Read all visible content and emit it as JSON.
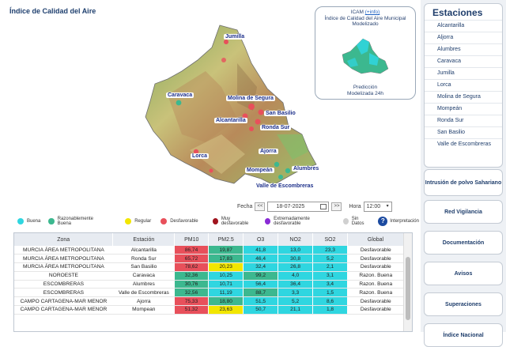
{
  "page_title": "Índice de Calidad del Aire",
  "map_labels": [
    "Jumilla",
    "Caravaca",
    "Molina de Segura",
    "San Basilio",
    "Alcantarilla",
    "Ronda Sur",
    "Ajorra",
    "Lorca",
    "Mompeán",
    "Alumbres",
    "Valle de Escombreras"
  ],
  "inset": {
    "title": "ICAM",
    "link": "(+info)",
    "line1": "Índice de Calidad del Aire Municipal",
    "line2": "Modelizado",
    "foot1": "Predicción",
    "foot2": "Modelizada 24h"
  },
  "date_selector": {
    "fecha_label": "Fecha",
    "prev": "<<",
    "date": "18-07-2025",
    "next": ">>",
    "hora_label": "Hora",
    "hour": "12:00"
  },
  "legend": [
    {
      "label": "Buena",
      "color": "#2fd6e0"
    },
    {
      "label": "Razonablemente Buena",
      "color": "#3cb88f"
    },
    {
      "label": "Regular",
      "color": "#f2e600"
    },
    {
      "label": "Desfavorable",
      "color": "#e8505b"
    },
    {
      "label": "Muy desfavorable",
      "color": "#a0141e"
    },
    {
      "label": "Extremadamente desfavorable",
      "color": "#8a2bd6"
    },
    {
      "label": "Sin Datos",
      "color": "#d0d0d0"
    },
    {
      "label": "Interpretación",
      "color": "#1b4aa0"
    }
  ],
  "table": {
    "headers": [
      "Zona",
      "Estación",
      "PM10",
      "PM2.5",
      "O3",
      "NO2",
      "SO2",
      "Global"
    ],
    "rows": [
      {
        "zona": "MURCIA ÁREA METROPOLITANA",
        "estacion": "Alcantarilla",
        "pm10": "86,74",
        "pm25": "19,87",
        "o3": "41,8",
        "no2": "13,0",
        "so2": "23,3",
        "global": "Desfavorable",
        "c": [
          "#e8505b",
          "#3cb88f",
          "#2fd6e0",
          "#2fd6e0",
          "#2fd6e0"
        ]
      },
      {
        "zona": "MURCIA ÁREA METROPOLITANA",
        "estacion": "Ronda Sur",
        "pm10": "65,72",
        "pm25": "17,83",
        "o3": "46,4",
        "no2": "30,8",
        "so2": "5,2",
        "global": "Desfavorable",
        "c": [
          "#e8505b",
          "#3cb88f",
          "#2fd6e0",
          "#2fd6e0",
          "#2fd6e0"
        ]
      },
      {
        "zona": "MURCIA ÁREA METROPOLITANA",
        "estacion": "San Basilio",
        "pm10": "78,62",
        "pm25": "20,23",
        "o3": "32,4",
        "no2": "26,8",
        "so2": "2,1",
        "global": "Desfavorable",
        "c": [
          "#e8505b",
          "#f2e600",
          "#2fd6e0",
          "#2fd6e0",
          "#2fd6e0"
        ]
      },
      {
        "zona": "NOROESTE",
        "estacion": "Caravaca",
        "pm10": "32,36",
        "pm25": "10,25",
        "o3": "99,2",
        "no2": "4,0",
        "so2": "3,1",
        "global": "Razon. Buena",
        "c": [
          "#3cb88f",
          "#2fd6e0",
          "#3cb88f",
          "#2fd6e0",
          "#2fd6e0"
        ]
      },
      {
        "zona": "ESCOMBRERAS",
        "estacion": "Alumbres",
        "pm10": "30,76",
        "pm25": "10,71",
        "o3": "56,4",
        "no2": "36,4",
        "so2": "3,4",
        "global": "Razon. Buena",
        "c": [
          "#3cb88f",
          "#2fd6e0",
          "#2fd6e0",
          "#2fd6e0",
          "#2fd6e0"
        ]
      },
      {
        "zona": "ESCOMBRERAS",
        "estacion": "Valle de Escombreras",
        "pm10": "32,56",
        "pm25": "11,19",
        "o3": "88,7",
        "no2": "3,3",
        "so2": "1,5",
        "global": "Razon. Buena",
        "c": [
          "#3cb88f",
          "#2fd6e0",
          "#3cb88f",
          "#2fd6e0",
          "#2fd6e0"
        ]
      },
      {
        "zona": "CAMPO CARTAGENA-MAR MENOR",
        "estacion": "Ajorra",
        "pm10": "75,33",
        "pm25": "18,80",
        "o3": "51,5",
        "no2": "5,2",
        "so2": "8,6",
        "global": "Desfavorable",
        "c": [
          "#e8505b",
          "#3cb88f",
          "#2fd6e0",
          "#2fd6e0",
          "#2fd6e0"
        ]
      },
      {
        "zona": "CAMPO CARTAGENA-MAR MENOR",
        "estacion": "Mompean",
        "pm10": "51,32",
        "pm25": "23,63",
        "o3": "50,7",
        "no2": "21,1",
        "so2": "1,8",
        "global": "Desfavorable",
        "c": [
          "#e8505b",
          "#f2e600",
          "#2fd6e0",
          "#2fd6e0",
          "#2fd6e0"
        ]
      }
    ]
  },
  "sidebar": {
    "title": "Estaciones",
    "stations": [
      "Alcantarilla",
      "Aljorra",
      "Alumbres",
      "Caravaca",
      "Jumilla",
      "Lorca",
      "Molina de Segura",
      "Mompeán",
      "Ronda Sur",
      "San Basilio",
      "Valle de Escombreras"
    ],
    "buttons": [
      "Intrusión de polvo Sahariano",
      "Red Vigilancia",
      "Documentación",
      "Avisos",
      "Superaciones",
      "Índice Nacional"
    ]
  }
}
